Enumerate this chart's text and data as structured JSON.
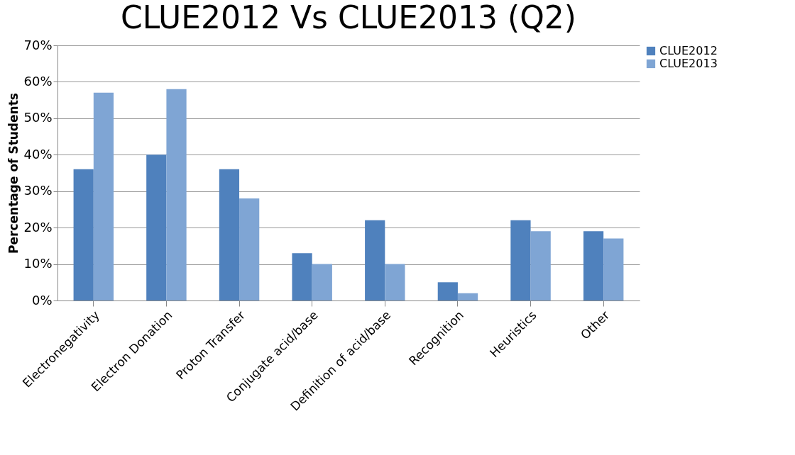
{
  "chart_data": {
    "type": "bar",
    "title": "CLUE2012 Vs CLUE2013 (Q2)",
    "ylabel": "Percentage of Students",
    "categories": [
      "Electronegativity",
      "Electron Donation",
      "Proton Transfer",
      "Conjugate acid/base",
      "Definition of acid/base",
      "Recognition",
      "Heuristics",
      "Other"
    ],
    "series": [
      {
        "name": "CLUE2012",
        "color": "#4f81bd",
        "values": [
          36,
          40,
          36,
          13,
          22,
          5,
          22,
          19
        ]
      },
      {
        "name": "CLUE2013",
        "color": "#7fa5d4",
        "values": [
          57,
          58,
          28,
          10,
          10,
          2,
          19,
          17
        ]
      }
    ],
    "ylim": [
      0,
      70
    ],
    "yticks": [
      {
        "value": 0,
        "label": "0%"
      },
      {
        "value": 10,
        "label": "10%"
      },
      {
        "value": 20,
        "label": "20%"
      },
      {
        "value": 30,
        "label": "30%"
      },
      {
        "value": 40,
        "label": "40%"
      },
      {
        "value": 50,
        "label": "50%"
      },
      {
        "value": 60,
        "label": "60%"
      },
      {
        "value": 70,
        "label": "70%"
      }
    ],
    "grid": "y",
    "legend": "top right"
  }
}
